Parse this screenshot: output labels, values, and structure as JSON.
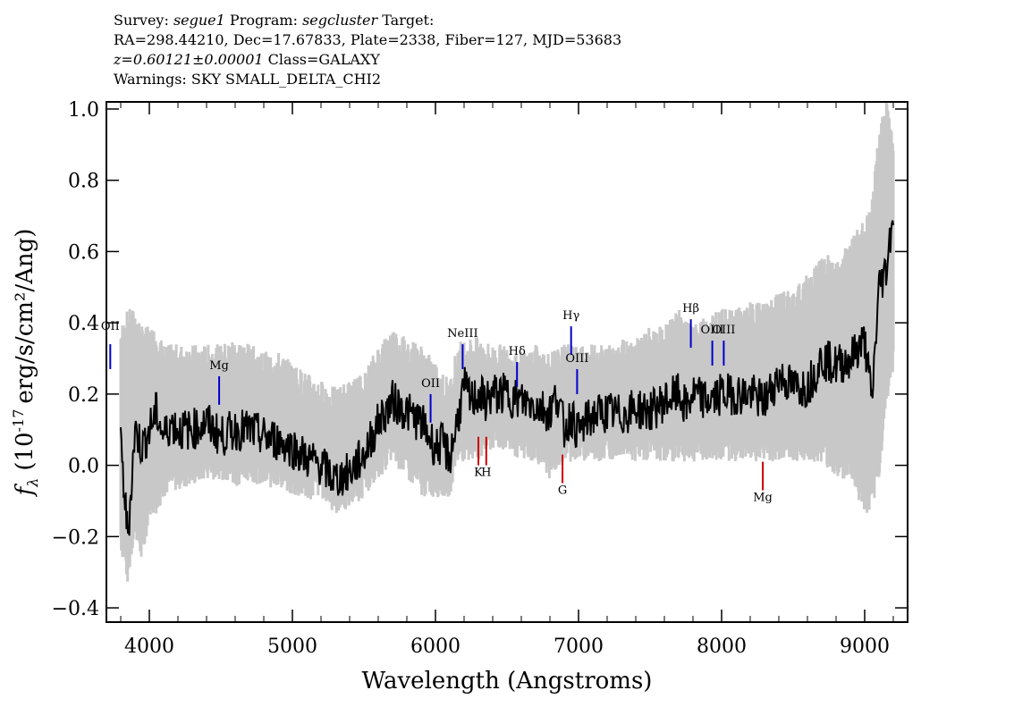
{
  "header": {
    "survey_label": "Survey:",
    "survey": "segue1",
    "program_label": "Program:",
    "program": "segcluster",
    "target_label": "Target:",
    "line2": "RA=298.44210, Dec=17.67833, Plate=2338, Fiber=127, MJD=53683",
    "redshift": "z=0.60121±0.00001",
    "class": "Class=GALAXY",
    "warnings": "Warnings: SKY SMALL_DELTA_CHI2"
  },
  "chart_data": {
    "type": "line",
    "xlabel": "Wavelength (Angstroms)",
    "ylabel_sym": "f",
    "ylabel_sub": "λ",
    "ylabel_pre": "(10",
    "ylabel_exp": "-17",
    "ylabel_post": "erg/s/cm²/Ang)",
    "xlim": [
      3700,
      9300
    ],
    "ylim": [
      -0.44,
      1.02
    ],
    "xticks": [
      4000,
      5000,
      6000,
      7000,
      8000,
      9000
    ],
    "yticks": [
      -0.4,
      -0.2,
      0.0,
      0.2,
      0.4,
      0.6,
      0.8,
      1.0
    ],
    "ytick_labels": [
      "−0.4",
      "−0.2",
      "0.0",
      "0.2",
      "0.4",
      "0.6",
      "0.8",
      "1.0"
    ],
    "series": [
      {
        "role": "error-band",
        "color": "#c8c8c8",
        "x": [
          3800,
          3850,
          3900,
          3950,
          4000,
          4050,
          4100,
          4200,
          4300,
          4400,
          4500,
          4600,
          4700,
          4800,
          4900,
          5000,
          5100,
          5200,
          5300,
          5400,
          5500,
          5600,
          5700,
          5800,
          5900,
          6000,
          6100,
          6150,
          6200,
          6300,
          6400,
          6500,
          6600,
          6700,
          6800,
          6900,
          7000,
          7100,
          7200,
          7300,
          7400,
          7500,
          7600,
          7700,
          7800,
          7900,
          8000,
          8100,
          8200,
          8300,
          8400,
          8500,
          8600,
          8700,
          8800,
          8900,
          9000,
          9050,
          9100,
          9150,
          9200
        ],
        "lo": [
          -0.2,
          -0.3,
          -0.15,
          -0.25,
          -0.1,
          -0.1,
          -0.05,
          -0.03,
          -0.02,
          0.0,
          0.0,
          -0.02,
          0.0,
          -0.03,
          -0.02,
          -0.05,
          -0.06,
          -0.05,
          -0.1,
          -0.08,
          -0.05,
          0.0,
          0.05,
          0.0,
          -0.05,
          -0.05,
          -0.05,
          0.05,
          0.05,
          0.05,
          0.08,
          0.08,
          0.05,
          0.05,
          0.0,
          0.05,
          0.05,
          0.05,
          0.05,
          0.07,
          0.05,
          0.05,
          0.05,
          0.05,
          0.05,
          0.05,
          0.05,
          0.05,
          0.05,
          0.05,
          0.05,
          0.05,
          0.05,
          0.05,
          0.0,
          0.0,
          -0.1,
          -0.1,
          0.0,
          0.2,
          0.3
        ],
        "hi": [
          0.35,
          0.4,
          0.4,
          0.35,
          0.35,
          0.35,
          0.3,
          0.3,
          0.3,
          0.3,
          0.3,
          0.32,
          0.3,
          0.28,
          0.28,
          0.25,
          0.22,
          0.2,
          0.18,
          0.2,
          0.22,
          0.3,
          0.35,
          0.32,
          0.3,
          0.25,
          0.2,
          0.3,
          0.32,
          0.32,
          0.3,
          0.3,
          0.28,
          0.3,
          0.28,
          0.3,
          0.3,
          0.3,
          0.3,
          0.32,
          0.32,
          0.35,
          0.35,
          0.4,
          0.35,
          0.38,
          0.4,
          0.4,
          0.42,
          0.42,
          0.45,
          0.45,
          0.5,
          0.55,
          0.55,
          0.6,
          0.65,
          0.7,
          0.9,
          1.0,
          0.9
        ]
      },
      {
        "role": "flux",
        "color": "#000000",
        "x": [
          3800,
          3850,
          3900,
          3950,
          4000,
          4050,
          4100,
          4150,
          4200,
          4300,
          4400,
          4500,
          4600,
          4700,
          4800,
          4900,
          5000,
          5100,
          5200,
          5300,
          5400,
          5500,
          5600,
          5700,
          5800,
          5900,
          6000,
          6050,
          6100,
          6150,
          6200,
          6250,
          6300,
          6350,
          6400,
          6500,
          6600,
          6700,
          6800,
          6850,
          6900,
          6950,
          7000,
          7050,
          7100,
          7200,
          7300,
          7400,
          7500,
          7600,
          7700,
          7750,
          7800,
          7900,
          8000,
          8100,
          8200,
          8300,
          8400,
          8500,
          8600,
          8700,
          8800,
          8900,
          9000,
          9050,
          9100,
          9150,
          9200
        ],
        "y": [
          0.05,
          -0.2,
          0.1,
          0.05,
          0.1,
          0.15,
          0.08,
          0.12,
          0.1,
          0.1,
          0.12,
          0.08,
          0.1,
          0.1,
          0.08,
          0.07,
          0.05,
          0.02,
          0.0,
          -0.04,
          -0.02,
          0.03,
          0.12,
          0.18,
          0.15,
          0.12,
          0.05,
          0.06,
          0.02,
          0.12,
          0.22,
          0.18,
          0.2,
          0.18,
          0.2,
          0.2,
          0.18,
          0.17,
          0.15,
          0.2,
          0.1,
          0.14,
          0.09,
          0.12,
          0.14,
          0.15,
          0.14,
          0.16,
          0.15,
          0.18,
          0.2,
          0.16,
          0.2,
          0.18,
          0.2,
          0.2,
          0.2,
          0.18,
          0.25,
          0.22,
          0.22,
          0.3,
          0.28,
          0.3,
          0.35,
          0.18,
          0.5,
          0.55,
          0.72
        ]
      }
    ],
    "emission_lines": [
      {
        "label": "OII",
        "x": 3727,
        "color": "#0000cc",
        "label_y": 0.38,
        "y0": 0.27,
        "y1": 0.34
      },
      {
        "label": "Mg",
        "x": 4488,
        "color": "#0000cc",
        "label_y": 0.27,
        "y0": 0.17,
        "y1": 0.25
      },
      {
        "label": "OII",
        "x": 5966,
        "color": "#0000cc",
        "label_y": 0.22,
        "y0": 0.12,
        "y1": 0.2
      },
      {
        "label": "NeIII",
        "x": 6190,
        "color": "#0000cc",
        "label_y": 0.36,
        "y0": 0.27,
        "y1": 0.34
      },
      {
        "label": "Hδ",
        "x": 6570,
        "color": "#0000cc",
        "label_y": 0.31,
        "y0": 0.22,
        "y1": 0.29
      },
      {
        "label": "Hγ",
        "x": 6948,
        "color": "#0000cc",
        "label_y": 0.41,
        "y0": 0.31,
        "y1": 0.39
      },
      {
        "label": "OIII",
        "x": 6990,
        "color": "#0000cc",
        "label_y": 0.29,
        "y0": 0.2,
        "y1": 0.27
      },
      {
        "label": "Hβ",
        "x": 7785,
        "color": "#0000cc",
        "label_y": 0.43,
        "y0": 0.33,
        "y1": 0.41
      },
      {
        "label": "OIII",
        "x": 7935,
        "color": "#0000cc",
        "label_y": 0.37,
        "y0": 0.28,
        "y1": 0.35
      },
      {
        "label": "OIII",
        "x": 8015,
        "color": "#0000cc",
        "label_y": 0.37,
        "y0": 0.28,
        "y1": 0.35
      }
    ],
    "absorption_lines": [
      {
        "label": "K",
        "x": 6300,
        "color": "#cc0000",
        "label_y": -0.03,
        "y0": 0.0,
        "y1": 0.08
      },
      {
        "label": "H",
        "x": 6355,
        "color": "#cc0000",
        "label_y": -0.03,
        "y0": 0.0,
        "y1": 0.08
      },
      {
        "label": "G",
        "x": 6888,
        "color": "#cc0000",
        "label_y": -0.08,
        "y0": -0.05,
        "y1": 0.03
      },
      {
        "label": "Mg",
        "x": 8288,
        "color": "#cc0000",
        "label_y": -0.1,
        "y0": -0.07,
        "y1": 0.01
      }
    ]
  }
}
